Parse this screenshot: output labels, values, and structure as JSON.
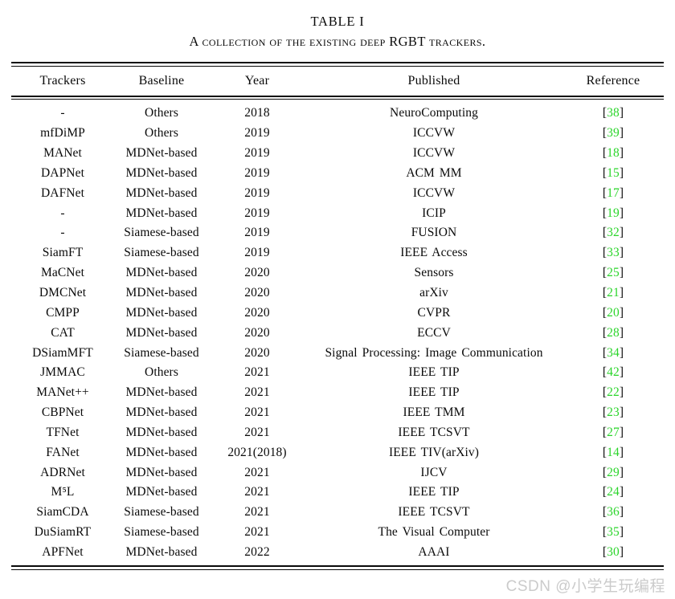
{
  "page": {
    "title": "TABLE I",
    "caption": "A collection of the existing deep RGBT trackers.",
    "watermark": "CSDN @小学生玩编程"
  },
  "table": {
    "columns": [
      "Trackers",
      "Baseline",
      "Year",
      "Published",
      "Reference"
    ],
    "citation_open": "[",
    "citation_close": "]",
    "citation_color": "#2bd52b",
    "rows": [
      {
        "tracker": "-",
        "baseline": "Others",
        "year": "2018",
        "published": "NeuroComputing",
        "ref": "38"
      },
      {
        "tracker": "mfDiMP",
        "baseline": "Others",
        "year": "2019",
        "published": "ICCVW",
        "ref": "39"
      },
      {
        "tracker": "MANet",
        "baseline": "MDNet-based",
        "year": "2019",
        "published": "ICCVW",
        "ref": "18"
      },
      {
        "tracker": "DAPNet",
        "baseline": "MDNet-based",
        "year": "2019",
        "published": "ACM MM",
        "ref": "15"
      },
      {
        "tracker": "DAFNet",
        "baseline": "MDNet-based",
        "year": "2019",
        "published": "ICCVW",
        "ref": "17"
      },
      {
        "tracker": "-",
        "baseline": "MDNet-based",
        "year": "2019",
        "published": "ICIP",
        "ref": "19"
      },
      {
        "tracker": "-",
        "baseline": "Siamese-based",
        "year": "2019",
        "published": "FUSION",
        "ref": "32"
      },
      {
        "tracker": "SiamFT",
        "baseline": "Siamese-based",
        "year": "2019",
        "published": "IEEE Access",
        "ref": "33"
      },
      {
        "tracker": "MaCNet",
        "baseline": "MDNet-based",
        "year": "2020",
        "published": "Sensors",
        "ref": "25"
      },
      {
        "tracker": "DMCNet",
        "baseline": "MDNet-based",
        "year": "2020",
        "published": "arXiv",
        "ref": "21"
      },
      {
        "tracker": "CMPP",
        "baseline": "MDNet-based",
        "year": "2020",
        "published": "CVPR",
        "ref": "20"
      },
      {
        "tracker": "CAT",
        "baseline": "MDNet-based",
        "year": "2020",
        "published": "ECCV",
        "ref": "28"
      },
      {
        "tracker": "DSiamMFT",
        "baseline": "Siamese-based",
        "year": "2020",
        "published": "Signal Processing: Image Communication",
        "ref": "34"
      },
      {
        "tracker": "JMMAC",
        "baseline": "Others",
        "year": "2021",
        "published": "IEEE TIP",
        "ref": "42"
      },
      {
        "tracker": "MANet++",
        "baseline": "MDNet-based",
        "year": "2021",
        "published": "IEEE TIP",
        "ref": "22"
      },
      {
        "tracker": "CBPNet",
        "baseline": "MDNet-based",
        "year": "2021",
        "published": "IEEE TMM",
        "ref": "23"
      },
      {
        "tracker": "TFNet",
        "baseline": "MDNet-based",
        "year": "2021",
        "published": "IEEE TCSVT",
        "ref": "27"
      },
      {
        "tracker": "FANet",
        "baseline": "MDNet-based",
        "year": "2021(2018)",
        "published": "IEEE TIV(arXiv)",
        "ref": "14"
      },
      {
        "tracker": "ADRNet",
        "baseline": "MDNet-based",
        "year": "2021",
        "published": "IJCV",
        "ref": "29"
      },
      {
        "tracker": "M⁵L",
        "baseline": "MDNet-based",
        "year": "2021",
        "published": "IEEE TIP",
        "ref": "24"
      },
      {
        "tracker": "SiamCDA",
        "baseline": "Siamese-based",
        "year": "2021",
        "published": "IEEE TCSVT",
        "ref": "36"
      },
      {
        "tracker": "DuSiamRT",
        "baseline": "Siamese-based",
        "year": "2021",
        "published": "The Visual Computer",
        "ref": "35"
      },
      {
        "tracker": "APFNet",
        "baseline": "MDNet-based",
        "year": "2022",
        "published": "AAAI",
        "ref": "30"
      }
    ]
  }
}
